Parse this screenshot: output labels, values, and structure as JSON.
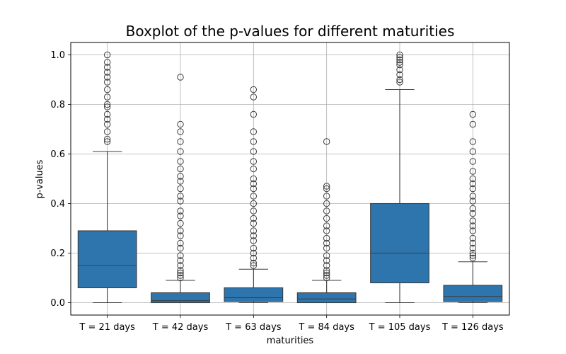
{
  "chart_data": {
    "type": "boxplot",
    "title": "Boxplot of the p-values for different maturities",
    "xlabel": "maturities",
    "ylabel": "p-values",
    "ylim": [
      -0.05,
      1.05
    ],
    "yticks": [
      "0.0",
      "0.2",
      "0.4",
      "0.6",
      "0.8",
      "1.0"
    ],
    "grid": true,
    "box_color": "#2e75ad",
    "categories": [
      "T = 21 days",
      "T = 42 days",
      "T = 63 days",
      "T = 84 days",
      "T = 105 days",
      "T = 126 days"
    ],
    "boxes": [
      {
        "whisker_low": 0.0,
        "q1": 0.06,
        "median": 0.15,
        "q3": 0.29,
        "whisker_high": 0.61,
        "outliers": [
          0.65,
          0.66,
          0.69,
          0.72,
          0.74,
          0.76,
          0.79,
          0.8,
          0.83,
          0.86,
          0.89,
          0.91,
          0.93,
          0.95,
          0.97,
          1.0
        ]
      },
      {
        "whisker_low": 0.0,
        "q1": 0.0,
        "median": 0.008,
        "q3": 0.04,
        "whisker_high": 0.09,
        "outliers": [
          0.1,
          0.11,
          0.12,
          0.13,
          0.15,
          0.17,
          0.19,
          0.22,
          0.24,
          0.27,
          0.29,
          0.32,
          0.35,
          0.37,
          0.41,
          0.43,
          0.46,
          0.49,
          0.51,
          0.54,
          0.57,
          0.61,
          0.65,
          0.69,
          0.72,
          0.91
        ]
      },
      {
        "whisker_low": 0.0,
        "q1": 0.005,
        "median": 0.02,
        "q3": 0.06,
        "whisker_high": 0.135,
        "outliers": [
          0.15,
          0.16,
          0.18,
          0.2,
          0.22,
          0.25,
          0.27,
          0.29,
          0.32,
          0.34,
          0.37,
          0.4,
          0.43,
          0.46,
          0.48,
          0.5,
          0.54,
          0.57,
          0.61,
          0.65,
          0.69,
          0.76,
          0.83,
          0.86
        ]
      },
      {
        "whisker_low": 0.0,
        "q1": 0.0,
        "median": 0.015,
        "q3": 0.04,
        "whisker_high": 0.09,
        "outliers": [
          0.1,
          0.11,
          0.12,
          0.13,
          0.15,
          0.17,
          0.19,
          0.22,
          0.24,
          0.26,
          0.29,
          0.31,
          0.34,
          0.37,
          0.4,
          0.43,
          0.46,
          0.47,
          0.65
        ]
      },
      {
        "whisker_low": 0.0,
        "q1": 0.08,
        "median": 0.2,
        "q3": 0.4,
        "whisker_high": 0.86,
        "outliers": [
          0.89,
          0.9,
          0.92,
          0.94,
          0.96,
          0.97,
          0.98,
          0.99,
          1.0
        ]
      },
      {
        "whisker_low": 0.0,
        "q1": 0.005,
        "median": 0.025,
        "q3": 0.07,
        "whisker_high": 0.165,
        "outliers": [
          0.18,
          0.19,
          0.2,
          0.22,
          0.24,
          0.26,
          0.29,
          0.31,
          0.33,
          0.36,
          0.38,
          0.41,
          0.43,
          0.46,
          0.48,
          0.5,
          0.53,
          0.57,
          0.61,
          0.65,
          0.72,
          0.76
        ]
      }
    ]
  }
}
